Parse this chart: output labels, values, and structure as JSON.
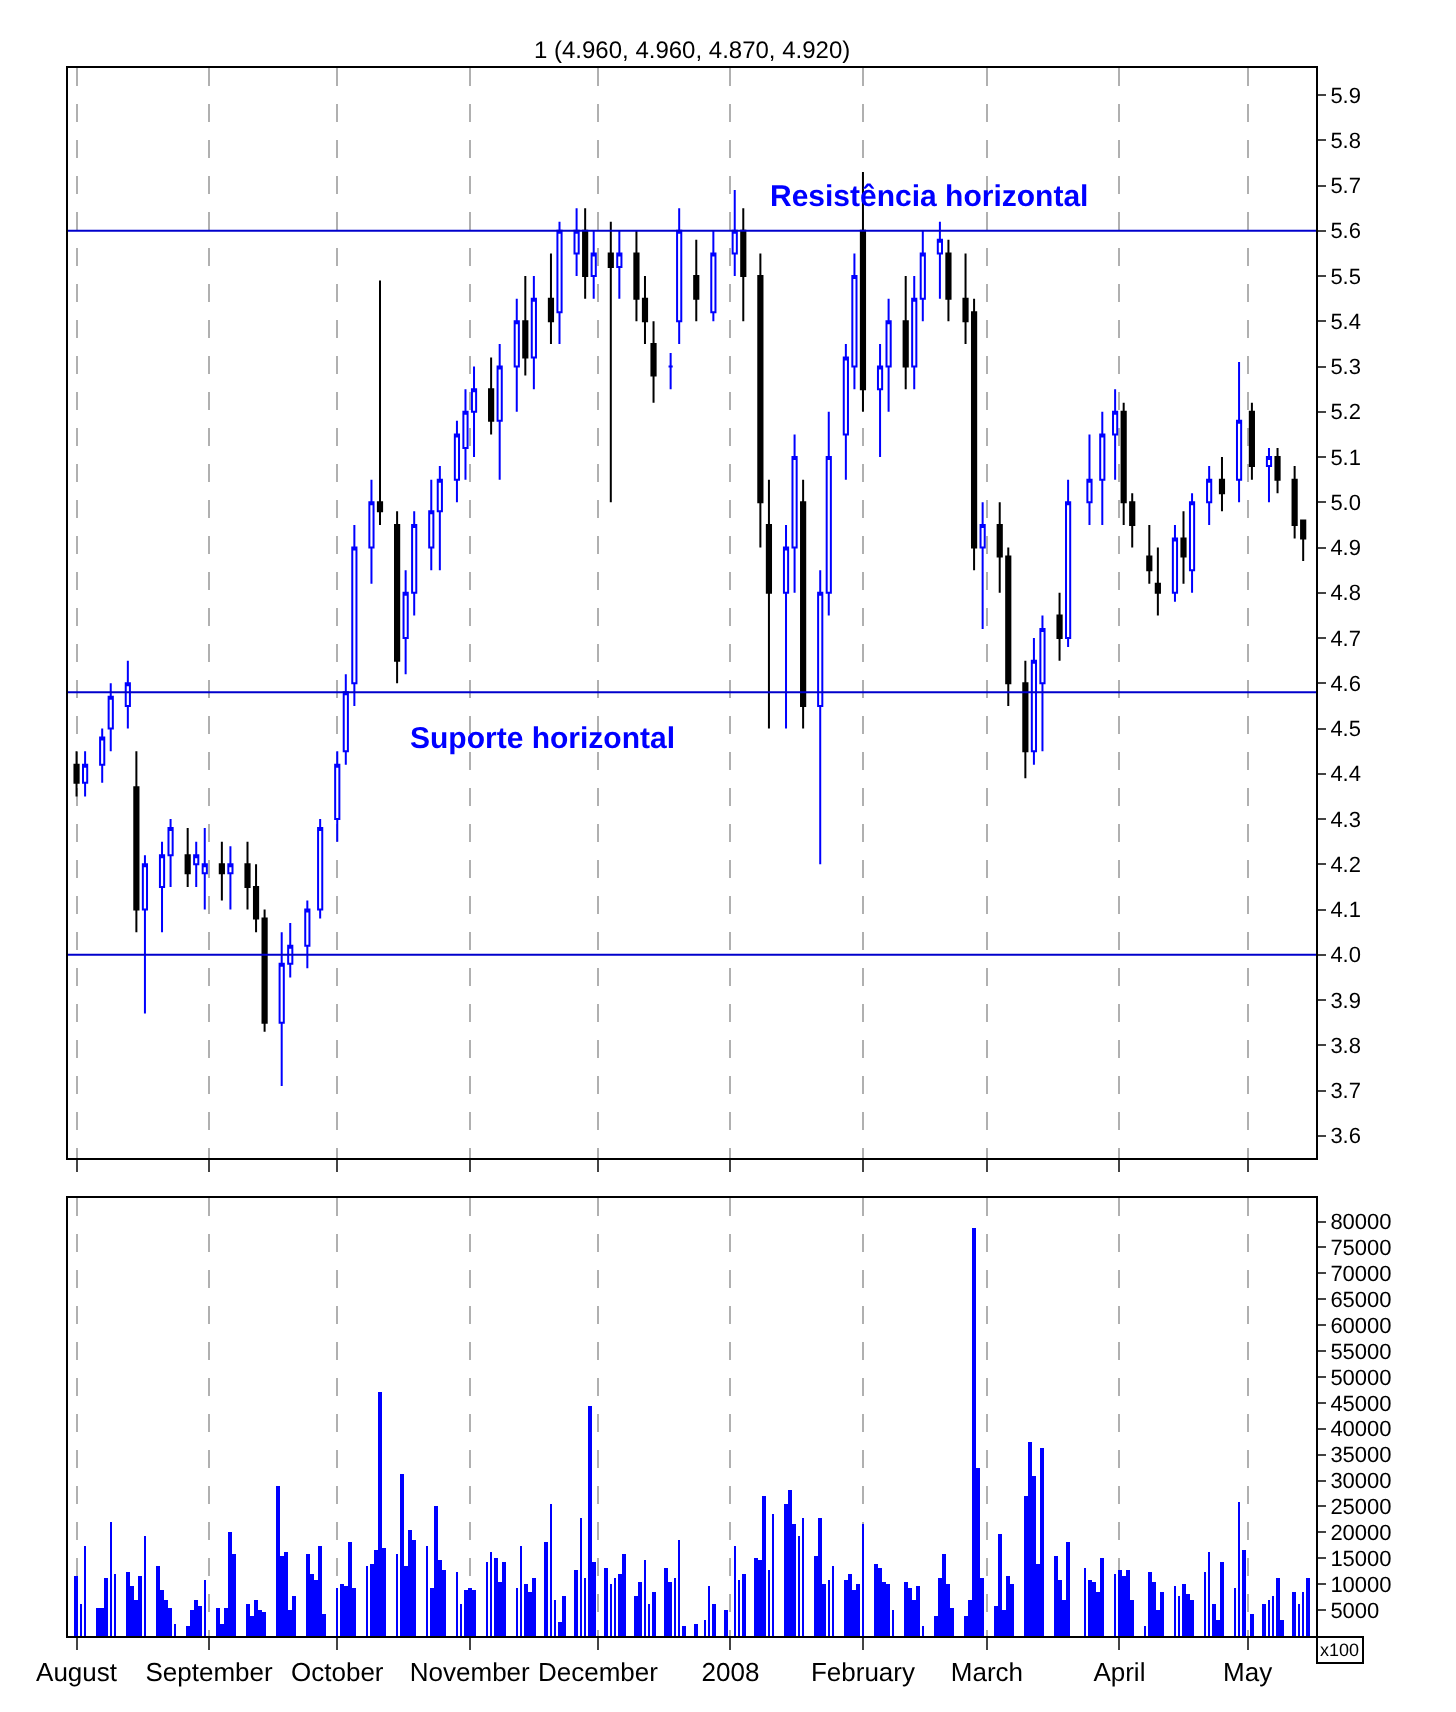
{
  "chart_data": [
    {
      "type": "candlestick",
      "title": "1 (4.960, 4.960, 4.870, 4.920)",
      "x": [
        "2007-08-01",
        "2007-08-03",
        "2007-08-07",
        "2007-08-09",
        "2007-08-13",
        "2007-08-15",
        "2007-08-17",
        "2007-08-21",
        "2007-08-23",
        "2007-08-27",
        "2007-08-29",
        "2007-08-31",
        "2007-09-04",
        "2007-09-06",
        "2007-09-10",
        "2007-09-12",
        "2007-09-14",
        "2007-09-18",
        "2007-09-20",
        "2007-09-24",
        "2007-09-27",
        "2007-10-01",
        "2007-10-03",
        "2007-10-05",
        "2007-10-09",
        "2007-10-11",
        "2007-10-15",
        "2007-10-17",
        "2007-10-19",
        "2007-10-23",
        "2007-10-25",
        "2007-10-29",
        "2007-10-31",
        "2007-11-02",
        "2007-11-06",
        "2007-11-08",
        "2007-11-12",
        "2007-11-14",
        "2007-11-16",
        "2007-11-20",
        "2007-11-22",
        "2007-11-26",
        "2007-11-28",
        "2007-11-30",
        "2007-12-04",
        "2007-12-06",
        "2007-12-10",
        "2007-12-12",
        "2007-12-14",
        "2007-12-18",
        "2007-12-20",
        "2007-12-24",
        "2007-12-28",
        "2008-01-02",
        "2008-01-04",
        "2008-01-08",
        "2008-01-10",
        "2008-01-14",
        "2008-01-16",
        "2008-01-18",
        "2008-01-22",
        "2008-01-24",
        "2008-01-28",
        "2008-01-30",
        "2008-02-01",
        "2008-02-05",
        "2008-02-07",
        "2008-02-11",
        "2008-02-13",
        "2008-02-15",
        "2008-02-19",
        "2008-02-21",
        "2008-02-25",
        "2008-02-27",
        "2008-02-29",
        "2008-03-04",
        "2008-03-06",
        "2008-03-10",
        "2008-03-12",
        "2008-03-14",
        "2008-03-18",
        "2008-03-20",
        "2008-03-25",
        "2008-03-28",
        "2008-03-31",
        "2008-04-02",
        "2008-04-04",
        "2008-04-08",
        "2008-04-10",
        "2008-04-14",
        "2008-04-16",
        "2008-04-18",
        "2008-04-22",
        "2008-04-25",
        "2008-04-29",
        "2008-05-02",
        "2008-05-06",
        "2008-05-08",
        "2008-05-12",
        "2008-05-14"
      ],
      "ohlc": [
        [
          4.42,
          4.45,
          4.35,
          4.38
        ],
        [
          4.38,
          4.45,
          4.35,
          4.42
        ],
        [
          4.42,
          4.5,
          4.38,
          4.48
        ],
        [
          4.5,
          4.6,
          4.45,
          4.57
        ],
        [
          4.55,
          4.65,
          4.5,
          4.6
        ],
        [
          4.37,
          4.45,
          4.05,
          4.1
        ],
        [
          4.1,
          4.22,
          3.87,
          4.2
        ],
        [
          4.15,
          4.25,
          4.05,
          4.22
        ],
        [
          4.22,
          4.3,
          4.15,
          4.28
        ],
        [
          4.22,
          4.28,
          4.15,
          4.18
        ],
        [
          4.2,
          4.25,
          4.15,
          4.22
        ],
        [
          4.18,
          4.28,
          4.1,
          4.2
        ],
        [
          4.2,
          4.25,
          4.12,
          4.18
        ],
        [
          4.18,
          4.24,
          4.1,
          4.2
        ],
        [
          4.2,
          4.25,
          4.1,
          4.15
        ],
        [
          4.15,
          4.2,
          4.05,
          4.08
        ],
        [
          4.08,
          4.1,
          3.83,
          3.85
        ],
        [
          3.85,
          4.05,
          3.71,
          3.98
        ],
        [
          3.98,
          4.07,
          3.95,
          4.02
        ],
        [
          4.02,
          4.12,
          3.97,
          4.1
        ],
        [
          4.1,
          4.3,
          4.08,
          4.28
        ],
        [
          4.3,
          4.45,
          4.25,
          4.42
        ],
        [
          4.45,
          4.62,
          4.42,
          4.58
        ],
        [
          4.6,
          4.95,
          4.55,
          4.9
        ],
        [
          4.9,
          5.05,
          4.82,
          5.0
        ],
        [
          5.0,
          5.49,
          4.95,
          4.98
        ],
        [
          4.95,
          4.98,
          4.6,
          4.65
        ],
        [
          4.7,
          4.85,
          4.62,
          4.8
        ],
        [
          4.8,
          4.98,
          4.75,
          4.95
        ],
        [
          4.9,
          5.05,
          4.85,
          4.98
        ],
        [
          4.98,
          5.08,
          4.85,
          5.05
        ],
        [
          5.05,
          5.18,
          5.0,
          5.15
        ],
        [
          5.12,
          5.25,
          5.05,
          5.2
        ],
        [
          5.2,
          5.3,
          5.1,
          5.25
        ],
        [
          5.25,
          5.32,
          5.15,
          5.18
        ],
        [
          5.18,
          5.35,
          5.05,
          5.3
        ],
        [
          5.3,
          5.45,
          5.2,
          5.4
        ],
        [
          5.4,
          5.5,
          5.28,
          5.32
        ],
        [
          5.32,
          5.5,
          5.25,
          5.45
        ],
        [
          5.45,
          5.55,
          5.35,
          5.4
        ],
        [
          5.42,
          5.62,
          5.35,
          5.6
        ],
        [
          5.55,
          5.65,
          5.5,
          5.6
        ],
        [
          5.6,
          5.65,
          5.45,
          5.5
        ],
        [
          5.5,
          5.6,
          5.45,
          5.55
        ],
        [
          5.55,
          5.62,
          5.0,
          5.52
        ],
        [
          5.52,
          5.6,
          5.45,
          5.55
        ],
        [
          5.55,
          5.6,
          5.4,
          5.45
        ],
        [
          5.45,
          5.5,
          5.35,
          5.4
        ],
        [
          5.35,
          5.4,
          5.22,
          5.28
        ],
        [
          5.3,
          5.33,
          5.25,
          5.3
        ],
        [
          5.4,
          5.65,
          5.35,
          5.6
        ],
        [
          5.5,
          5.58,
          5.4,
          5.45
        ],
        [
          5.42,
          5.6,
          5.4,
          5.55
        ],
        [
          5.55,
          5.69,
          5.5,
          5.6
        ],
        [
          5.6,
          5.65,
          5.4,
          5.5
        ],
        [
          5.5,
          5.55,
          4.9,
          5.0
        ],
        [
          4.95,
          5.05,
          4.5,
          4.8
        ],
        [
          4.8,
          4.95,
          4.5,
          4.9
        ],
        [
          4.9,
          5.15,
          4.8,
          5.1
        ],
        [
          5.0,
          5.05,
          4.5,
          4.55
        ],
        [
          4.55,
          4.85,
          4.2,
          4.8
        ],
        [
          4.8,
          5.2,
          4.75,
          5.1
        ],
        [
          5.15,
          5.35,
          5.05,
          5.32
        ],
        [
          5.3,
          5.55,
          5.25,
          5.5
        ],
        [
          5.6,
          5.73,
          5.2,
          5.25
        ],
        [
          5.25,
          5.35,
          5.1,
          5.3
        ],
        [
          5.3,
          5.45,
          5.2,
          5.4
        ],
        [
          5.4,
          5.5,
          5.25,
          5.3
        ],
        [
          5.3,
          5.5,
          5.25,
          5.45
        ],
        [
          5.45,
          5.6,
          5.4,
          5.55
        ],
        [
          5.55,
          5.62,
          5.45,
          5.58
        ],
        [
          5.55,
          5.58,
          5.4,
          5.45
        ],
        [
          5.45,
          5.55,
          5.35,
          5.4
        ],
        [
          5.42,
          5.45,
          4.85,
          4.9
        ],
        [
          4.9,
          5.0,
          4.72,
          4.95
        ],
        [
          4.95,
          5.0,
          4.8,
          4.88
        ],
        [
          4.88,
          4.9,
          4.55,
          4.6
        ],
        [
          4.6,
          4.65,
          4.39,
          4.45
        ],
        [
          4.45,
          4.7,
          4.42,
          4.65
        ],
        [
          4.6,
          4.75,
          4.45,
          4.72
        ],
        [
          4.75,
          4.8,
          4.65,
          4.7
        ],
        [
          4.7,
          5.05,
          4.68,
          5.0
        ],
        [
          5.0,
          5.15,
          4.95,
          5.05
        ],
        [
          5.05,
          5.2,
          4.95,
          5.15
        ],
        [
          5.15,
          5.25,
          5.05,
          5.2
        ],
        [
          5.2,
          5.22,
          4.95,
          5.0
        ],
        [
          5.0,
          5.02,
          4.9,
          4.95
        ],
        [
          4.88,
          4.95,
          4.82,
          4.85
        ],
        [
          4.82,
          4.9,
          4.75,
          4.8
        ],
        [
          4.8,
          4.95,
          4.78,
          4.92
        ],
        [
          4.92,
          4.98,
          4.82,
          4.88
        ],
        [
          4.85,
          5.02,
          4.8,
          5.0
        ],
        [
          5.0,
          5.08,
          4.95,
          5.05
        ],
        [
          5.05,
          5.1,
          4.98,
          5.02
        ],
        [
          5.05,
          5.31,
          5.0,
          5.18
        ],
        [
          5.2,
          5.22,
          5.05,
          5.08
        ],
        [
          5.08,
          5.12,
          5.0,
          5.1
        ],
        [
          5.1,
          5.12,
          5.02,
          5.05
        ],
        [
          5.05,
          5.08,
          4.92,
          4.95
        ],
        [
          4.96,
          4.96,
          4.87,
          4.92
        ]
      ],
      "colors": [
        "#000000",
        "#0000ff",
        "#0000ff",
        "#0000ff",
        "#0000ff",
        "#000000",
        "#0000ff",
        "#0000ff",
        "#0000ff",
        "#000000",
        "#0000ff",
        "#0000ff",
        "#000000",
        "#0000ff",
        "#000000",
        "#000000",
        "#000000",
        "#0000ff",
        "#0000ff",
        "#0000ff",
        "#0000ff",
        "#0000ff",
        "#0000ff",
        "#0000ff",
        "#0000ff",
        "#000000",
        "#000000",
        "#0000ff",
        "#0000ff",
        "#0000ff",
        "#0000ff",
        "#0000ff",
        "#0000ff",
        "#0000ff",
        "#000000",
        "#0000ff",
        "#0000ff",
        "#000000",
        "#0000ff",
        "#000000",
        "#0000ff",
        "#0000ff",
        "#000000",
        "#0000ff",
        "#000000",
        "#0000ff",
        "#000000",
        "#000000",
        "#000000",
        "#0000ff",
        "#0000ff",
        "#000000",
        "#0000ff",
        "#0000ff",
        "#000000",
        "#000000",
        "#000000",
        "#0000ff",
        "#0000ff",
        "#000000",
        "#0000ff",
        "#0000ff",
        "#0000ff",
        "#0000ff",
        "#000000",
        "#0000ff",
        "#0000ff",
        "#000000",
        "#0000ff",
        "#0000ff",
        "#0000ff",
        "#000000",
        "#000000",
        "#000000",
        "#0000ff",
        "#000000",
        "#000000",
        "#000000",
        "#0000ff",
        "#0000ff",
        "#000000",
        "#0000ff",
        "#0000ff",
        "#0000ff",
        "#0000ff",
        "#000000",
        "#000000",
        "#000000",
        "#000000",
        "#0000ff",
        "#000000",
        "#0000ff",
        "#0000ff",
        "#000000",
        "#0000ff",
        "#000000",
        "#0000ff",
        "#000000",
        "#000000",
        "#000000"
      ],
      "xlim": [
        "2007-07-30",
        "2008-05-17"
      ],
      "xticks": [
        {
          "value": "2007-08-01",
          "label": null
        },
        {
          "value": "2007-09-01",
          "label": null
        },
        {
          "value": "2007-10-01",
          "label": null
        },
        {
          "value": "2007-11-01",
          "label": null
        },
        {
          "value": "2007-12-01",
          "label": null
        },
        {
          "value": "2008-01-01",
          "label": null
        },
        {
          "value": "2008-02-01",
          "label": null
        },
        {
          "value": "2008-03-01",
          "label": null
        },
        {
          "value": "2008-04-01",
          "label": null
        },
        {
          "value": "2008-05-01",
          "label": null
        }
      ],
      "ylim": [
        3.55,
        5.96
      ],
      "yticks": [
        3.6,
        3.7,
        3.8,
        3.9,
        {
          "value": 4.0,
          "label": "4.0"
        },
        4.1,
        4.2,
        4.3,
        4.4,
        4.5,
        4.6,
        4.7,
        4.8,
        4.9,
        {
          "value": 5.0,
          "label": "5.0"
        },
        5.1,
        5.2,
        5.3,
        5.4,
        5.5,
        5.6,
        5.7,
        5.8,
        5.9
      ],
      "tick_labels": "y",
      "grid": "x",
      "ref_lines": [
        {
          "axis": "y",
          "value": 5.6,
          "color": "#0000cc"
        },
        {
          "axis": "y",
          "value": 4.58,
          "color": "#0000cc"
        },
        {
          "axis": "y",
          "value": 4.0,
          "color": "#0000cc"
        }
      ],
      "annotations": [
        "Resistência horizontal",
        "Suporte horizontal"
      ]
    },
    {
      "type": "bar",
      "x": [
        "2007-08-01",
        "2007-08-02",
        "2007-08-03",
        "2007-08-06",
        "2007-08-07",
        "2007-08-08",
        "2007-08-09",
        "2007-08-10",
        "2007-08-13",
        "2007-08-14",
        "2007-08-15",
        "2007-08-16",
        "2007-08-17",
        "2007-08-20",
        "2007-08-21",
        "2007-08-22",
        "2007-08-23",
        "2007-08-24",
        "2007-08-27",
        "2007-08-28",
        "2007-08-29",
        "2007-08-30",
        "2007-08-31",
        "2007-09-03",
        "2007-09-04",
        "2007-09-05",
        "2007-09-06",
        "2007-09-07",
        "2007-09-10",
        "2007-09-11",
        "2007-09-12",
        "2007-09-13",
        "2007-09-14",
        "2007-09-17",
        "2007-09-18",
        "2007-09-19",
        "2007-09-20",
        "2007-09-21",
        "2007-09-24",
        "2007-09-25",
        "2007-09-26",
        "2007-09-27",
        "2007-09-28",
        "2007-10-01",
        "2007-10-02",
        "2007-10-03",
        "2007-10-04",
        "2007-10-05",
        "2007-10-08",
        "2007-10-09",
        "2007-10-10",
        "2007-10-11",
        "2007-10-12",
        "2007-10-15",
        "2007-10-16",
        "2007-10-17",
        "2007-10-18",
        "2007-10-19",
        "2007-10-22",
        "2007-10-23",
        "2007-10-24",
        "2007-10-25",
        "2007-10-26",
        "2007-10-29",
        "2007-10-30",
        "2007-10-31",
        "2007-11-01",
        "2007-11-02",
        "2007-11-05",
        "2007-11-06",
        "2007-11-07",
        "2007-11-08",
        "2007-11-09",
        "2007-11-12",
        "2007-11-13",
        "2007-11-14",
        "2007-11-15",
        "2007-11-16",
        "2007-11-19",
        "2007-11-20",
        "2007-11-21",
        "2007-11-22",
        "2007-11-23",
        "2007-11-26",
        "2007-11-27",
        "2007-11-28",
        "2007-11-29",
        "2007-11-30",
        "2007-12-03",
        "2007-12-04",
        "2007-12-05",
        "2007-12-06",
        "2007-12-07",
        "2007-12-10",
        "2007-12-11",
        "2007-12-12",
        "2007-12-13",
        "2007-12-14",
        "2007-12-17",
        "2007-12-18",
        "2007-12-19",
        "2007-12-20",
        "2007-12-21",
        "2007-12-24",
        "2007-12-26",
        "2007-12-27",
        "2007-12-28",
        "2007-12-31",
        "2008-01-02",
        "2008-01-03",
        "2008-01-04",
        "2008-01-07",
        "2008-01-08",
        "2008-01-09",
        "2008-01-10",
        "2008-01-11",
        "2008-01-14",
        "2008-01-15",
        "2008-01-16",
        "2008-01-17",
        "2008-01-18",
        "2008-01-21",
        "2008-01-22",
        "2008-01-23",
        "2008-01-24",
        "2008-01-25",
        "2008-01-28",
        "2008-01-29",
        "2008-01-30",
        "2008-01-31",
        "2008-02-01",
        "2008-02-04",
        "2008-02-05",
        "2008-02-06",
        "2008-02-07",
        "2008-02-08",
        "2008-02-11",
        "2008-02-12",
        "2008-02-13",
        "2008-02-14",
        "2008-02-15",
        "2008-02-18",
        "2008-02-19",
        "2008-02-20",
        "2008-02-21",
        "2008-02-22",
        "2008-02-25",
        "2008-02-26",
        "2008-02-27",
        "2008-02-28",
        "2008-02-29",
        "2008-03-03",
        "2008-03-04",
        "2008-03-05",
        "2008-03-06",
        "2008-03-07",
        "2008-03-10",
        "2008-03-11",
        "2008-03-12",
        "2008-03-13",
        "2008-03-14",
        "2008-03-17",
        "2008-03-18",
        "2008-03-19",
        "2008-03-20",
        "2008-03-24",
        "2008-03-25",
        "2008-03-26",
        "2008-03-27",
        "2008-03-28",
        "2008-03-31",
        "2008-04-01",
        "2008-04-02",
        "2008-04-03",
        "2008-04-04",
        "2008-04-07",
        "2008-04-08",
        "2008-04-09",
        "2008-04-10",
        "2008-04-11",
        "2008-04-14",
        "2008-04-15",
        "2008-04-16",
        "2008-04-17",
        "2008-04-18",
        "2008-04-21",
        "2008-04-22",
        "2008-04-23",
        "2008-04-24",
        "2008-04-25",
        "2008-04-28",
        "2008-04-29",
        "2008-04-30",
        "2008-05-02",
        "2008-05-05",
        "2008-05-06",
        "2008-05-07",
        "2008-05-08",
        "2008-05-09",
        "2008-05-12",
        "2008-05-13",
        "2008-05-14",
        "2008-05-15"
      ],
      "series": [
        {
          "color": "#0000ff",
          "values": [
            11600,
            6000,
            17300,
            5300,
            5300,
            11300,
            21800,
            12000,
            12400,
            9800,
            7100,
            11600,
            19100,
            13500,
            9000,
            6800,
            5300,
            2300,
            1900,
            4900,
            7100,
            5600,
            10900,
            5300,
            2300,
            5300,
            19900,
            15800,
            6000,
            3800,
            6800,
            4900,
            4500,
            28900,
            15400,
            16100,
            4900,
            7500,
            15800,
            12000,
            10900,
            17300,
            4100,
            9400,
            10100,
            9800,
            18000,
            9400,
            13500,
            13900,
            16500,
            46900,
            16900,
            15800,
            31100,
            13500,
            20600,
            18400,
            17300,
            9400,
            25100,
            14600,
            12800,
            12400,
            6000,
            9000,
            9400,
            9000,
            14300,
            16100,
            15000,
            10500,
            14300,
            9400,
            17300,
            10100,
            8300,
            11300,
            18000,
            25500,
            7100,
            2600,
            7500,
            12800,
            22900,
            11300,
            44300,
            14300,
            13100,
            10100,
            11300,
            12000,
            15800,
            7500,
            10500,
            14600,
            6000,
            8300,
            13100,
            10500,
            11300,
            18400,
            1900,
            2300,
            3000,
            9800,
            6000,
            5000,
            17300,
            10900,
            12000,
            15000,
            14600,
            27000,
            12800,
            23600,
            25500,
            28100,
            21400,
            19100,
            22900,
            15400,
            22900,
            10100,
            10900,
            13500,
            10900,
            12000,
            9000,
            10000,
            21400,
            13900,
            13100,
            10500,
            10100,
            4900,
            10500,
            9400,
            6800,
            9800,
            1900,
            3800,
            11300,
            15800,
            10100,
            5300,
            3800,
            6800,
            78800,
            32300,
            11300,
            5600,
            19500,
            4900,
            11600,
            10100,
            27000,
            37500,
            30800,
            13900,
            36400,
            15400,
            10900,
            6800,
            18000,
            13100,
            10900,
            10500,
            8300,
            15000,
            12000,
            12800,
            11600,
            12800,
            7100,
            1900,
            12400,
            10500,
            4900,
            8300,
            9800,
            7500,
            10100,
            7900,
            6800,
            12400,
            16100,
            6000,
            3000,
            14300,
            9400,
            25900,
            16500,
            4100,
            6000,
            7100,
            7500,
            11300,
            3000,
            8600,
            6000,
            8600,
            11300
          ]
        }
      ],
      "xlim": [
        "2007-07-30",
        "2008-05-17"
      ],
      "xticks": [
        {
          "value": "2007-08-01",
          "label": "August"
        },
        {
          "value": "2007-09-01",
          "label": "September"
        },
        {
          "value": "2007-10-01",
          "label": "October"
        },
        {
          "value": "2007-11-01",
          "label": "November"
        },
        {
          "value": "2007-12-01",
          "label": "December"
        },
        {
          "value": "2008-01-01",
          "label": "2008"
        },
        {
          "value": "2008-02-01",
          "label": "February"
        },
        {
          "value": "2008-03-01",
          "label": "March"
        },
        {
          "value": "2008-04-01",
          "label": "April"
        },
        {
          "value": "2008-05-01",
          "label": "May"
        }
      ],
      "ylim": [
        0,
        84500
      ],
      "yticks": [
        5000,
        10000,
        15000,
        20000,
        25000,
        30000,
        35000,
        40000,
        45000,
        50000,
        55000,
        60000,
        65000,
        70000,
        75000,
        80000
      ],
      "grid": "x",
      "annotations": [
        "x100"
      ]
    }
  ]
}
